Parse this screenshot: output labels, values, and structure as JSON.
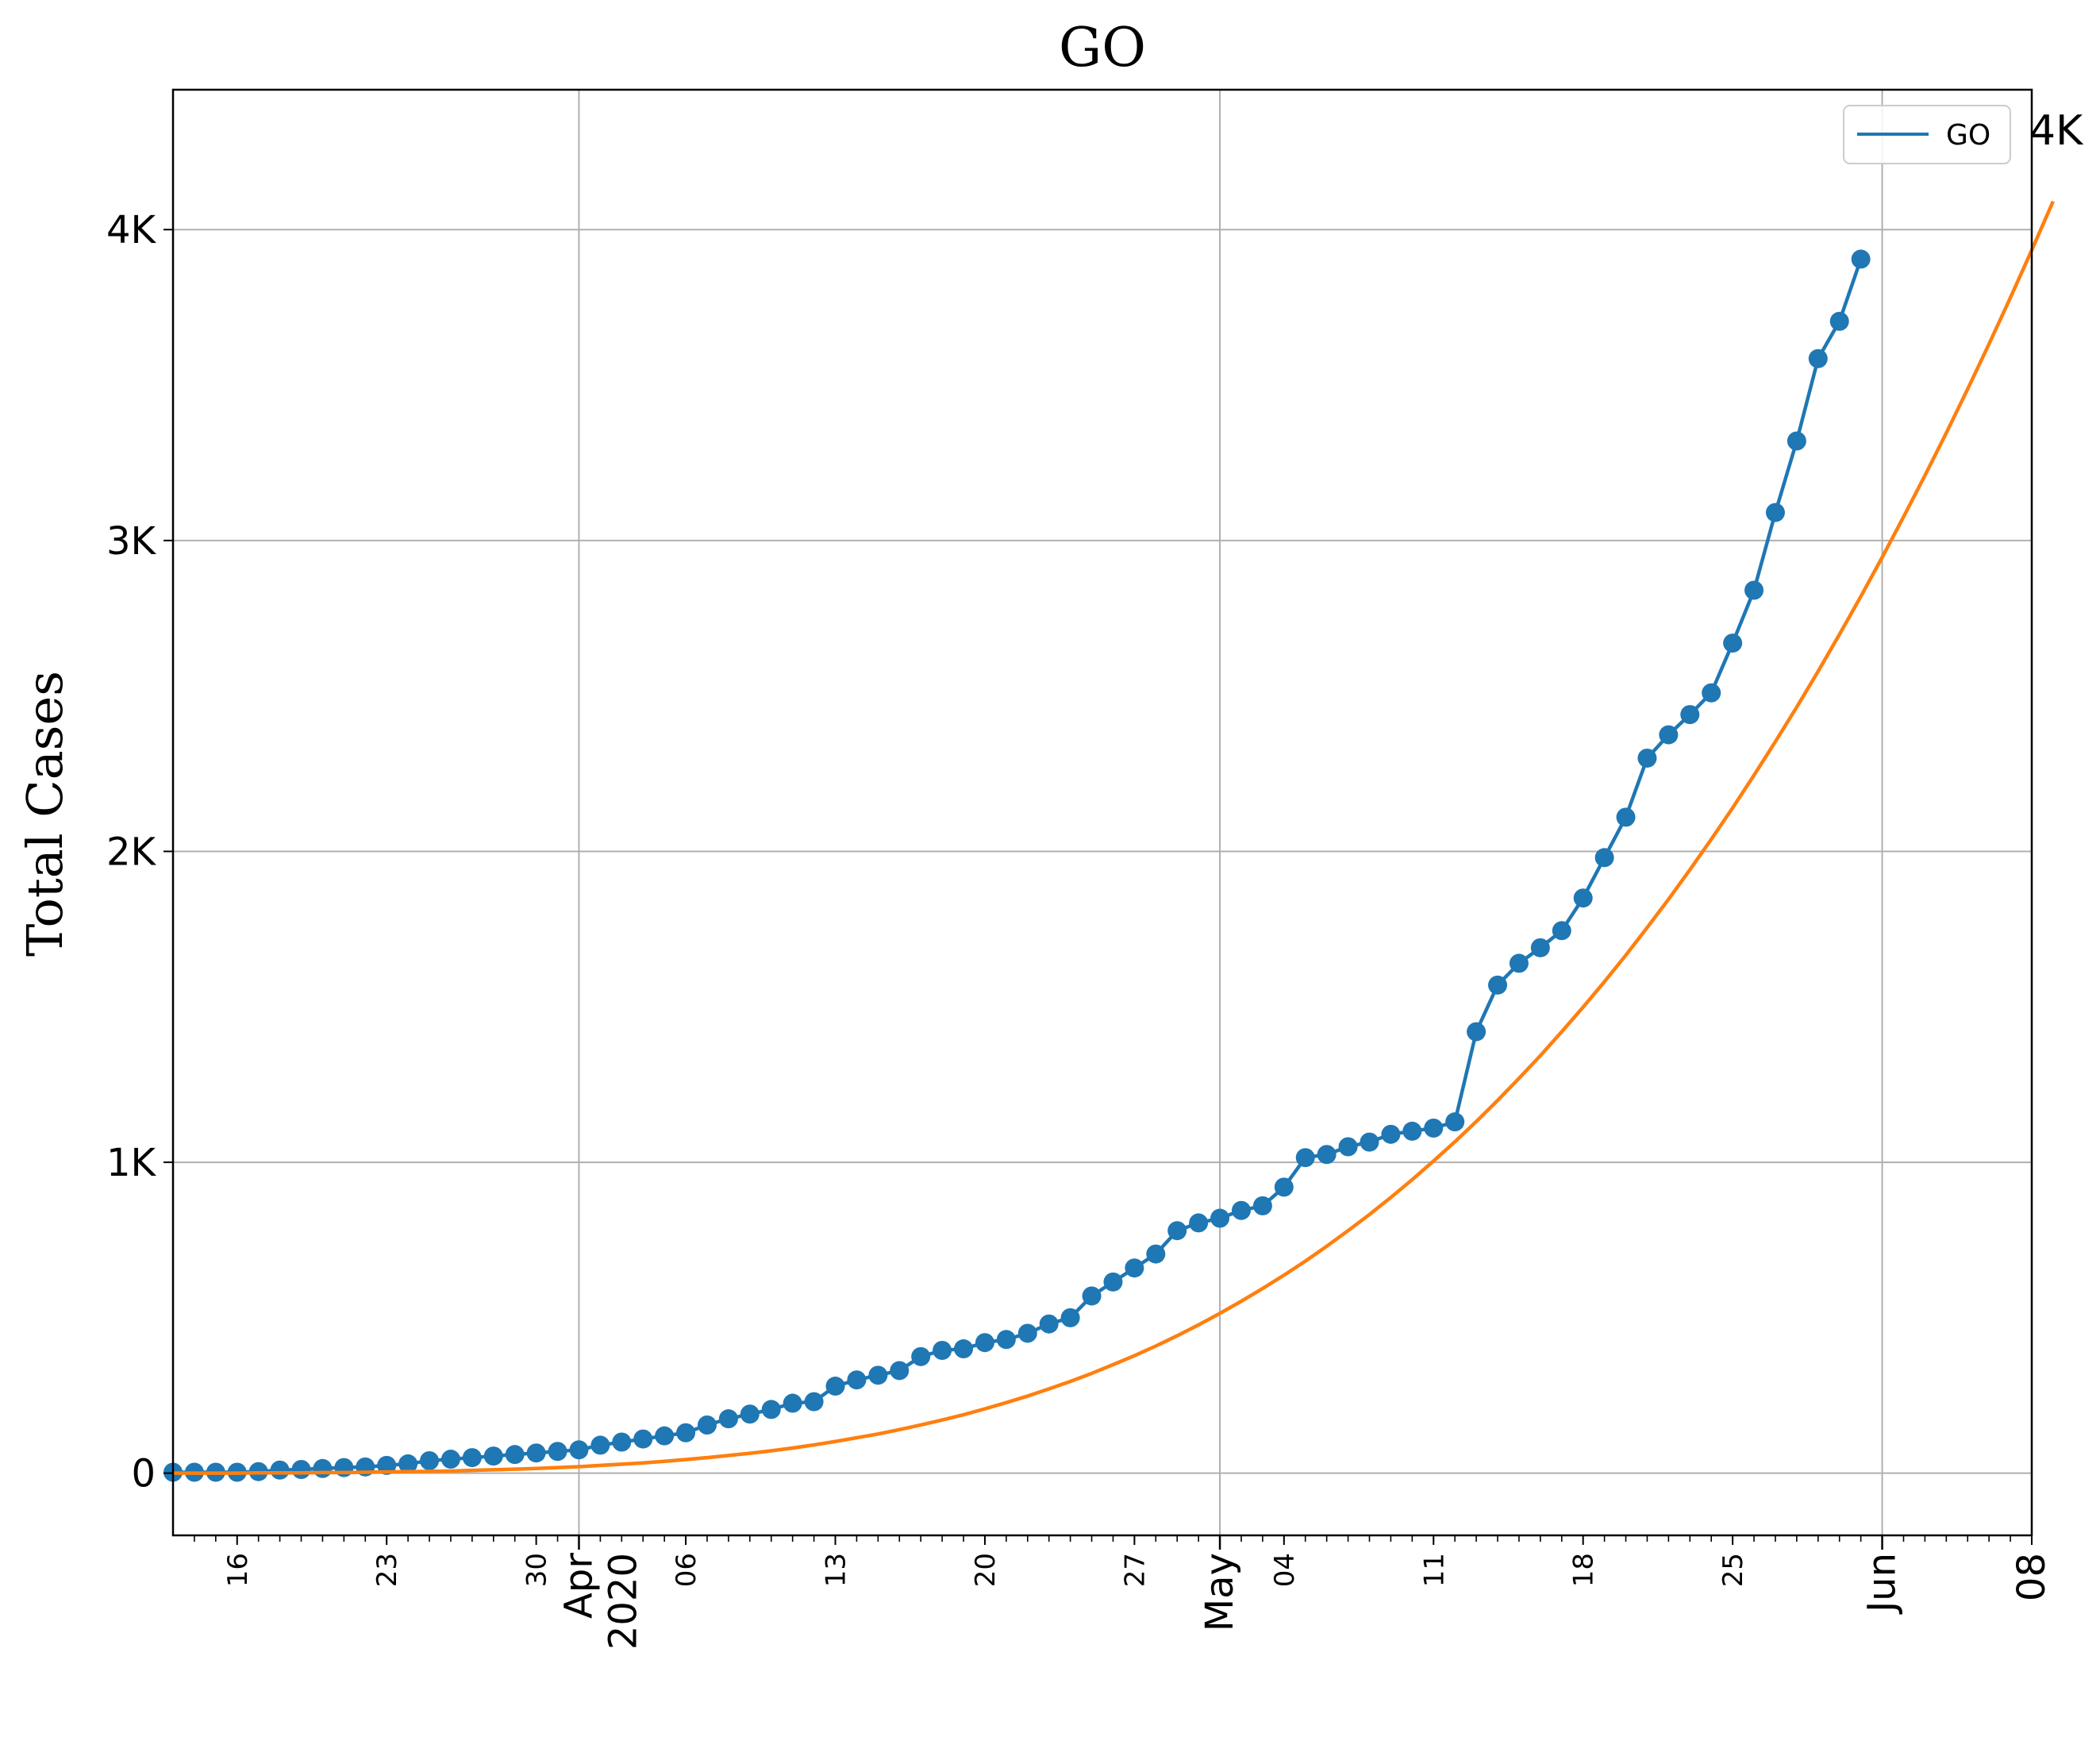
{
  "chart_data": {
    "type": "line",
    "title": "GO",
    "xlabel": "",
    "ylabel": "Total Cases",
    "x_start": "2020-03-13",
    "xlim": [
      "2020-03-13",
      "2020-06-08"
    ],
    "ylim": [
      -200,
      4450
    ],
    "grid": true,
    "legend_position": "upper right",
    "y_ticks": [
      {
        "value": 0,
        "label": "0"
      },
      {
        "value": 1000,
        "label": "1K"
      },
      {
        "value": 2000,
        "label": "2K"
      },
      {
        "value": 3000,
        "label": "3K"
      },
      {
        "value": 4000,
        "label": "4K"
      }
    ],
    "x_major_ticks": [
      {
        "date": "2020-04-01",
        "label": "Apr\n2020"
      },
      {
        "date": "2020-05-01",
        "label": "May"
      },
      {
        "date": "2020-06-01",
        "label": "Jun"
      }
    ],
    "x_minor_ticks": [
      {
        "date": "2020-03-16",
        "label": "16"
      },
      {
        "date": "2020-03-23",
        "label": "23"
      },
      {
        "date": "2020-03-30",
        "label": "30"
      },
      {
        "date": "2020-04-06",
        "label": "06"
      },
      {
        "date": "2020-04-13",
        "label": "13"
      },
      {
        "date": "2020-04-20",
        "label": "20"
      },
      {
        "date": "2020-04-27",
        "label": "27"
      },
      {
        "date": "2020-05-04",
        "label": "04"
      },
      {
        "date": "2020-05-11",
        "label": "11"
      },
      {
        "date": "2020-05-18",
        "label": "18"
      },
      {
        "date": "2020-05-25",
        "label": "25"
      },
      {
        "date": "2020-06-08",
        "label": "08"
      }
    ],
    "series": [
      {
        "name": "GO",
        "color": "#1f77b4",
        "marker": "circle",
        "values": [
          3,
          3,
          3,
          3,
          5,
          10,
          12,
          15,
          18,
          20,
          25,
          30,
          40,
          45,
          50,
          55,
          60,
          65,
          70,
          75,
          90,
          100,
          110,
          120,
          130,
          155,
          175,
          190,
          205,
          225,
          230,
          280,
          300,
          315,
          330,
          375,
          395,
          400,
          420,
          430,
          450,
          480,
          500,
          570,
          615,
          660,
          705,
          780,
          805,
          820,
          845,
          860,
          920,
          1015,
          1025,
          1050,
          1065,
          1090,
          1100,
          1110,
          1130,
          1420,
          1570,
          1640,
          1690,
          1745,
          1850,
          1980,
          2110,
          2300,
          2375,
          2440,
          2510,
          2670,
          2840,
          3090,
          3320,
          3585,
          3705,
          3905
        ]
      },
      {
        "name": "",
        "color": "#ff7f0e",
        "marker": "none",
        "fit": true,
        "fit_end_label": "4K",
        "values": [
          0,
          0,
          0,
          0,
          1,
          1,
          1,
          2,
          2,
          3,
          4,
          5,
          6,
          7,
          9,
          11,
          13,
          15,
          18,
          21,
          25,
          29,
          33,
          38,
          44,
          50,
          57,
          64,
          72,
          81,
          91,
          102,
          114,
          126,
          140,
          155,
          171,
          188,
          207,
          227,
          248,
          271,
          295,
          321,
          349,
          378,
          409,
          442,
          477,
          514,
          553,
          594,
          637,
          682,
          730,
          780,
          832,
          887,
          944,
          1004,
          1066,
          1131,
          1199,
          1270,
          1343,
          1420,
          1499,
          1581,
          1666,
          1755,
          1846,
          1941,
          2039,
          2140,
          2245,
          2353,
          2464,
          2579,
          2698,
          2820,
          2946,
          3076,
          3209,
          3346,
          3487,
          3632,
          3781,
          3934,
          4091
        ]
      }
    ]
  }
}
